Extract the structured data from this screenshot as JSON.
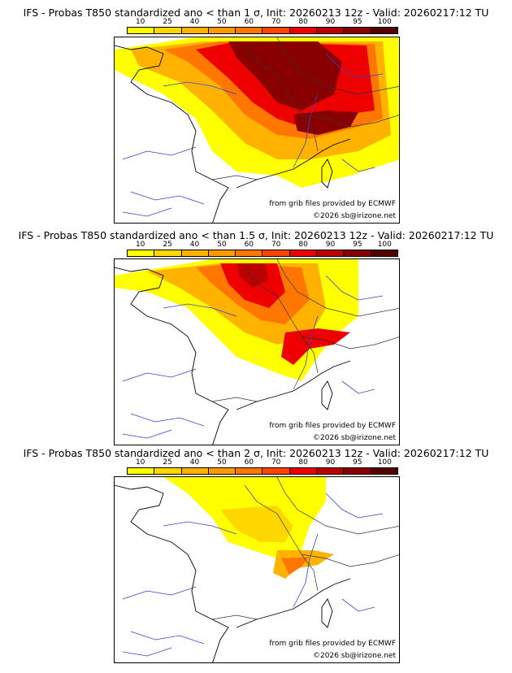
{
  "colorbar": {
    "ticks": [
      "10",
      "25",
      "40",
      "50",
      "60",
      "70",
      "80",
      "90",
      "95",
      "100"
    ],
    "colors": [
      "#ffff00",
      "#ffd700",
      "#ffb300",
      "#ff9900",
      "#ff7700",
      "#ff4400",
      "#ee0000",
      "#bb0000",
      "#880000",
      "#550000"
    ]
  },
  "panels": [
    {
      "title": "IFS - Probas T850  standardized ano < than 1 σ, Init: 20260213 12z - Valid: 20260217:12 TU",
      "credit1": "from grib files provided by ECMWF",
      "credit2": "©2026 sb@irizone.net"
    },
    {
      "title": "IFS - Probas T850  standardized ano < than 1.5 σ, Init: 20260213 12z - Valid: 20260217:12 TU",
      "credit1": "from grib files provided by ECMWF",
      "credit2": "©2026 sb@irizone.net"
    },
    {
      "title": "IFS - Probas T850  standardized ano < than 2 σ, Init: 20260213 12z - Valid: 20260217:12 TU",
      "credit1": "from grib files provided by ECMWF",
      "credit2": "©2026 sb@irizone.net"
    }
  ]
}
